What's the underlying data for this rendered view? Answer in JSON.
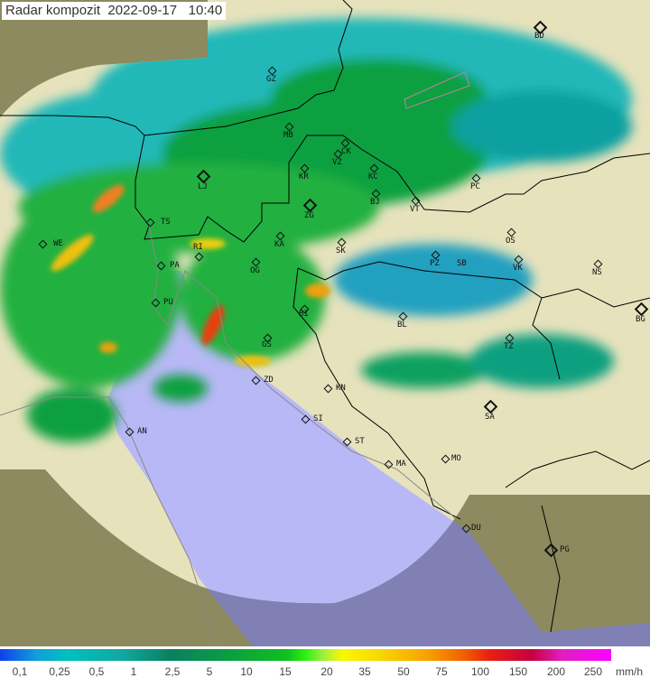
{
  "header": {
    "title": "Radar kompozit",
    "date": "2022-09-17",
    "time": "10:40"
  },
  "map": {
    "type": "weather radar composite",
    "colors": {
      "terrain": "#8c8a5e",
      "coverage": "#e6e2bc",
      "sea_in_coverage": "#b8b8f6",
      "sea_outside": "#8080b4",
      "border": "#000000"
    },
    "cities": [
      {
        "code": "BD",
        "major": true
      },
      {
        "code": "GZ"
      },
      {
        "code": "MB"
      },
      {
        "code": "CK"
      },
      {
        "code": "VZ"
      },
      {
        "code": "KR"
      },
      {
        "code": "KC"
      },
      {
        "code": "LJ",
        "major": true
      },
      {
        "code": "ZG",
        "major": true
      },
      {
        "code": "BJ"
      },
      {
        "code": "VT"
      },
      {
        "code": "PC"
      },
      {
        "code": "TS"
      },
      {
        "code": "WE"
      },
      {
        "code": "KA"
      },
      {
        "code": "SK"
      },
      {
        "code": "RI"
      },
      {
        "code": "PA"
      },
      {
        "code": "OG"
      },
      {
        "code": "OS"
      },
      {
        "code": "PZ"
      },
      {
        "code": "SB"
      },
      {
        "code": "VK"
      },
      {
        "code": "NS"
      },
      {
        "code": "BG",
        "major": true
      },
      {
        "code": "BI"
      },
      {
        "code": "PU"
      },
      {
        "code": "BL"
      },
      {
        "code": "TZ"
      },
      {
        "code": "GS"
      },
      {
        "code": "ZD"
      },
      {
        "code": "KN"
      },
      {
        "code": "SI"
      },
      {
        "code": "AN"
      },
      {
        "code": "SA",
        "major": true
      },
      {
        "code": "ST"
      },
      {
        "code": "MA"
      },
      {
        "code": "MO"
      },
      {
        "code": "DU"
      },
      {
        "code": "PG",
        "major": true
      }
    ]
  },
  "legend": {
    "unit": "mm/h",
    "ticks": [
      "0,1",
      "0,25",
      "0,5",
      "1",
      "2,5",
      "5",
      "10",
      "15",
      "20",
      "35",
      "50",
      "75",
      "100",
      "150",
      "200",
      "250"
    ]
  }
}
